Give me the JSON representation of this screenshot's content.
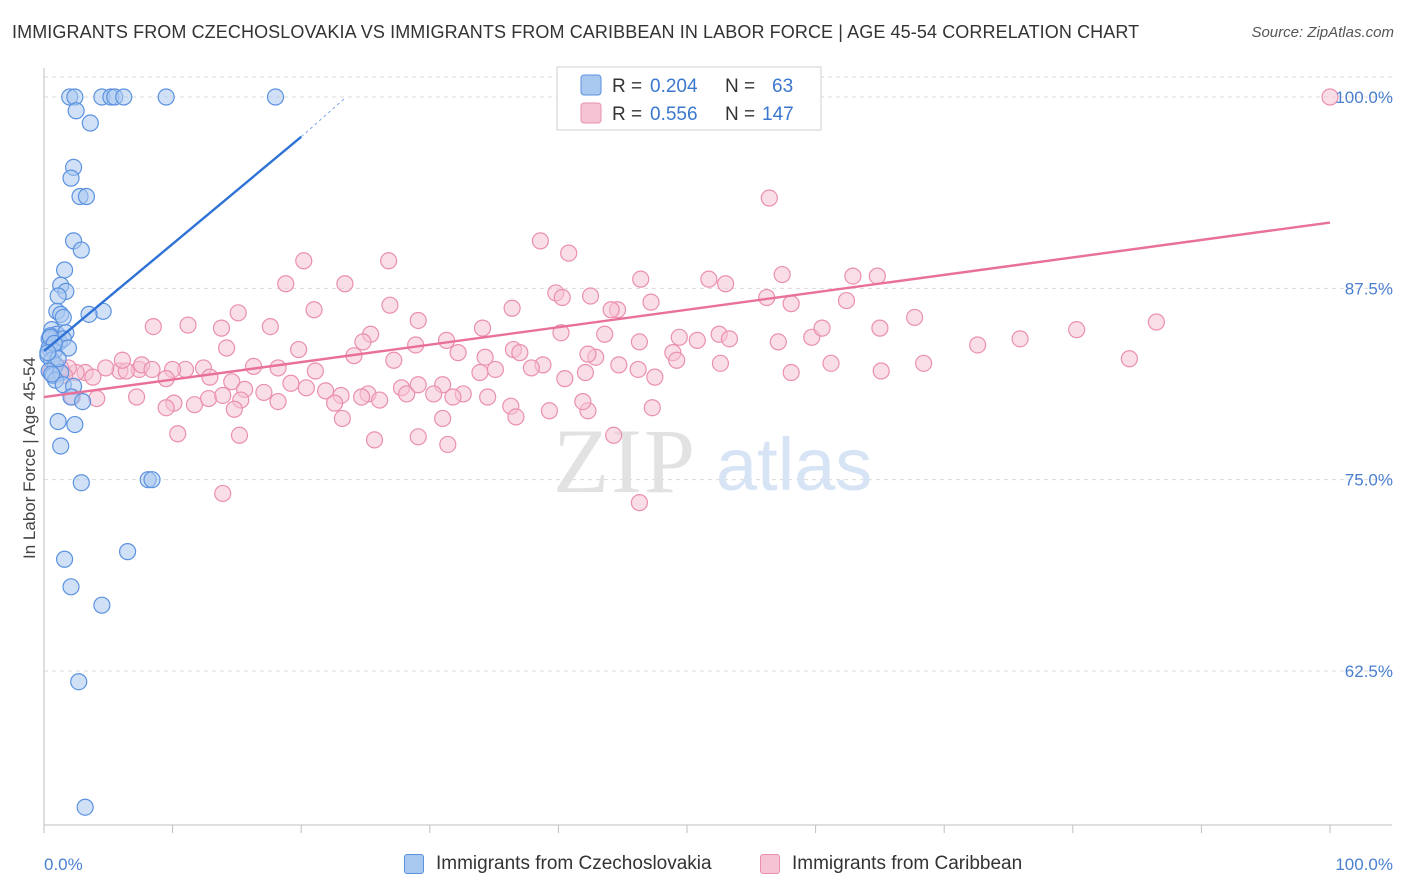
{
  "title": "IMMIGRANTS FROM CZECHOSLOVAKIA VS IMMIGRANTS FROM CARIBBEAN IN LABOR FORCE | AGE 45-54 CORRELATION CHART",
  "source": "Source: ZipAtlas.com",
  "watermark": {
    "zip": "ZIP",
    "atlas": "atlas"
  },
  "colors": {
    "blue_fill": "#a9c8f0",
    "blue_stroke": "#5b92e0",
    "blue_line": "#2f72d6",
    "pink_fill": "#f6c3d4",
    "pink_stroke": "#ea8fb0",
    "pink_line": "#e8709a",
    "grid": "#d9d9d9",
    "tick_label": "#4a7fd0"
  },
  "legend": {
    "rows": [
      {
        "r_label": "R =",
        "r_value": "0.204",
        "n_label": "N =",
        "n_value": "63",
        "color": "blue"
      },
      {
        "r_label": "R =",
        "r_value": "0.556",
        "n_label": "N =",
        "n_value": "147",
        "color": "pink"
      }
    ]
  },
  "bottom_legend": [
    {
      "label": "Immigrants from Czechoslovakia",
      "color": "blue"
    },
    {
      "label": "Immigrants from Caribbean",
      "color": "pink"
    }
  ],
  "chart_data": {
    "type": "scatter",
    "title": "IMMIGRANTS FROM CZECHOSLOVAKIA VS IMMIGRANTS FROM CARIBBEAN IN LABOR FORCE | AGE 45-54 CORRELATION CHART",
    "xlabel": "",
    "ylabel": "In Labor Force | Age 45-54",
    "xlim": [
      0,
      100
    ],
    "ylim": [
      50,
      102
    ],
    "x_tick_labels": [
      {
        "value": 0,
        "label": "0.0%"
      },
      {
        "value": 100,
        "label": "100.0%"
      }
    ],
    "y_tick_labels": [
      {
        "value": 100,
        "label": "100.0%"
      },
      {
        "value": 87.5,
        "label": "87.5%"
      },
      {
        "value": 75,
        "label": "75.0%"
      },
      {
        "value": 62.5,
        "label": "62.5%"
      }
    ],
    "grid": true,
    "legend_position": "top-center",
    "series": [
      {
        "name": "Immigrants from Czechoslovakia",
        "color": "blue",
        "r": 0.204,
        "n": 63,
        "trend": {
          "x0": 0,
          "y0": 83.4,
          "x1": 20,
          "y1": 97.4,
          "dash_to_x": 23.5,
          "dash_to_y": 100.0
        },
        "points": [
          [
            2.0,
            100
          ],
          [
            2.4,
            100
          ],
          [
            4.5,
            100
          ],
          [
            5.2,
            100
          ],
          [
            5.5,
            100
          ],
          [
            9.5,
            100
          ],
          [
            18.0,
            100
          ],
          [
            6.2,
            100
          ],
          [
            2.5,
            99.1
          ],
          [
            3.6,
            98.3
          ],
          [
            2.3,
            95.4
          ],
          [
            2.1,
            94.7
          ],
          [
            2.8,
            93.5
          ],
          [
            3.3,
            93.5
          ],
          [
            2.3,
            90.6
          ],
          [
            2.9,
            90.0
          ],
          [
            1.6,
            88.7
          ],
          [
            1.3,
            87.7
          ],
          [
            1.7,
            87.3
          ],
          [
            1.1,
            87.0
          ],
          [
            1.0,
            86.0
          ],
          [
            1.3,
            85.8
          ],
          [
            1.5,
            85.6
          ],
          [
            4.6,
            86.0
          ],
          [
            3.5,
            85.8
          ],
          [
            0.6,
            84.8
          ],
          [
            1.0,
            84.5
          ],
          [
            0.4,
            84.2
          ],
          [
            0.5,
            84.4
          ],
          [
            1.2,
            84.0
          ],
          [
            1.7,
            84.6
          ],
          [
            1.5,
            84.2
          ],
          [
            0.4,
            83.6
          ],
          [
            0.8,
            83.4
          ],
          [
            1.9,
            83.6
          ],
          [
            0.3,
            83.1
          ],
          [
            0.6,
            82.8
          ],
          [
            0.9,
            82.5
          ],
          [
            0.4,
            82.1
          ],
          [
            0.7,
            81.8
          ],
          [
            1.3,
            82.0
          ],
          [
            0.9,
            81.5
          ],
          [
            1.5,
            81.2
          ],
          [
            2.3,
            81.1
          ],
          [
            2.1,
            80.4
          ],
          [
            3.0,
            80.1
          ],
          [
            1.1,
            78.8
          ],
          [
            2.4,
            78.6
          ],
          [
            1.3,
            77.2
          ],
          [
            2.9,
            74.8
          ],
          [
            8.1,
            75.0
          ],
          [
            8.4,
            75.0
          ],
          [
            1.6,
            69.8
          ],
          [
            2.1,
            68.0
          ],
          [
            6.5,
            70.3
          ],
          [
            4.5,
            66.8
          ],
          [
            2.7,
            61.8
          ],
          [
            3.2,
            53.6
          ],
          [
            0.5,
            84.3
          ],
          [
            0.8,
            83.9
          ],
          [
            1.1,
            82.9
          ],
          [
            0.3,
            83.3
          ],
          [
            0.6,
            81.9
          ]
        ]
      },
      {
        "name": "Immigrants from Caribbean",
        "color": "pink",
        "r": 0.556,
        "n": 147,
        "trend": {
          "x0": 0,
          "y0": 80.4,
          "x1": 100,
          "y1": 91.8
        },
        "points": [
          [
            100,
            100
          ],
          [
            56.4,
            93.4
          ],
          [
            38.6,
            90.6
          ],
          [
            40.8,
            89.8
          ],
          [
            20.2,
            89.3
          ],
          [
            26.8,
            89.3
          ],
          [
            57.4,
            88.4
          ],
          [
            62.9,
            88.3
          ],
          [
            64.8,
            88.3
          ],
          [
            46.4,
            88.1
          ],
          [
            51.7,
            88.1
          ],
          [
            53.0,
            87.8
          ],
          [
            18.8,
            87.8
          ],
          [
            23.4,
            87.8
          ],
          [
            39.8,
            87.2
          ],
          [
            40.3,
            86.9
          ],
          [
            42.5,
            87.0
          ],
          [
            56.2,
            86.9
          ],
          [
            47.2,
            86.6
          ],
          [
            62.4,
            86.7
          ],
          [
            58.1,
            86.5
          ],
          [
            36.4,
            86.2
          ],
          [
            44.6,
            86.1
          ],
          [
            44.1,
            86.1
          ],
          [
            26.9,
            86.4
          ],
          [
            21.0,
            86.1
          ],
          [
            15.1,
            85.9
          ],
          [
            11.2,
            85.1
          ],
          [
            17.6,
            85.0
          ],
          [
            29.1,
            85.4
          ],
          [
            8.5,
            85.0
          ],
          [
            13.8,
            84.9
          ],
          [
            25.4,
            84.5
          ],
          [
            40.2,
            84.6
          ],
          [
            43.6,
            84.5
          ],
          [
            52.5,
            84.5
          ],
          [
            59.7,
            84.3
          ],
          [
            57.1,
            84.0
          ],
          [
            65.0,
            84.9
          ],
          [
            49.4,
            84.3
          ],
          [
            50.8,
            84.1
          ],
          [
            34.1,
            84.9
          ],
          [
            31.3,
            84.1
          ],
          [
            28.9,
            83.8
          ],
          [
            24.8,
            84.0
          ],
          [
            14.2,
            83.6
          ],
          [
            19.8,
            83.5
          ],
          [
            24.1,
            83.1
          ],
          [
            36.5,
            83.5
          ],
          [
            37.0,
            83.3
          ],
          [
            42.9,
            83.0
          ],
          [
            42.3,
            83.2
          ],
          [
            46.3,
            84.0
          ],
          [
            48.9,
            83.3
          ],
          [
            38.8,
            82.5
          ],
          [
            34.3,
            83.0
          ],
          [
            32.2,
            83.3
          ],
          [
            27.2,
            82.8
          ],
          [
            21.1,
            82.1
          ],
          [
            18.2,
            82.3
          ],
          [
            16.3,
            82.4
          ],
          [
            12.4,
            82.3
          ],
          [
            11.0,
            82.2
          ],
          [
            10.0,
            82.2
          ],
          [
            7.4,
            82.2
          ],
          [
            5.9,
            82.1
          ],
          [
            6.4,
            82.1
          ],
          [
            4.8,
            82.3
          ],
          [
            3.2,
            82.0
          ],
          [
            2.5,
            82.0
          ],
          [
            1.9,
            82.3
          ],
          [
            1.3,
            82.3
          ],
          [
            0.8,
            82.5
          ],
          [
            0.5,
            82.0
          ],
          [
            1.6,
            81.8
          ],
          [
            3.8,
            81.7
          ],
          [
            6.1,
            82.8
          ],
          [
            7.6,
            82.5
          ],
          [
            8.4,
            82.2
          ],
          [
            9.5,
            81.6
          ],
          [
            12.9,
            81.7
          ],
          [
            14.6,
            81.4
          ],
          [
            15.6,
            80.9
          ],
          [
            17.1,
            80.7
          ],
          [
            19.2,
            81.3
          ],
          [
            20.4,
            81.0
          ],
          [
            21.9,
            80.8
          ],
          [
            23.1,
            80.5
          ],
          [
            25.2,
            80.6
          ],
          [
            26.1,
            80.2
          ],
          [
            27.8,
            81.0
          ],
          [
            28.2,
            80.6
          ],
          [
            29.1,
            81.2
          ],
          [
            31.0,
            81.2
          ],
          [
            32.6,
            80.6
          ],
          [
            33.9,
            82.0
          ],
          [
            35.1,
            82.2
          ],
          [
            37.9,
            82.3
          ],
          [
            40.5,
            81.6
          ],
          [
            42.1,
            82.0
          ],
          [
            44.7,
            82.5
          ],
          [
            46.2,
            82.2
          ],
          [
            47.5,
            81.7
          ],
          [
            49.2,
            82.8
          ],
          [
            52.6,
            82.6
          ],
          [
            58.1,
            82.0
          ],
          [
            61.2,
            82.6
          ],
          [
            65.1,
            82.1
          ],
          [
            68.4,
            82.6
          ],
          [
            72.6,
            83.8
          ],
          [
            75.9,
            84.2
          ],
          [
            80.3,
            84.8
          ],
          [
            86.5,
            85.3
          ],
          [
            84.4,
            82.9
          ],
          [
            2.2,
            80.4
          ],
          [
            4.1,
            80.3
          ],
          [
            7.2,
            80.4
          ],
          [
            10.1,
            80.0
          ],
          [
            11.7,
            79.9
          ],
          [
            12.8,
            80.3
          ],
          [
            13.9,
            80.5
          ],
          [
            15.3,
            80.2
          ],
          [
            18.2,
            80.1
          ],
          [
            22.6,
            80.0
          ],
          [
            24.7,
            80.4
          ],
          [
            30.3,
            80.6
          ],
          [
            31.8,
            80.4
          ],
          [
            34.5,
            80.4
          ],
          [
            36.3,
            79.8
          ],
          [
            39.3,
            79.5
          ],
          [
            42.3,
            79.5
          ],
          [
            47.3,
            79.7
          ],
          [
            9.5,
            79.7
          ],
          [
            14.8,
            79.6
          ],
          [
            23.2,
            79.0
          ],
          [
            31.0,
            79.0
          ],
          [
            36.7,
            79.1
          ],
          [
            41.9,
            80.1
          ],
          [
            10.4,
            78.0
          ],
          [
            15.2,
            77.9
          ],
          [
            25.7,
            77.6
          ],
          [
            29.1,
            77.8
          ],
          [
            31.4,
            77.3
          ],
          [
            44.3,
            77.9
          ],
          [
            13.9,
            74.1
          ],
          [
            46.3,
            73.5
          ],
          [
            53.3,
            84.2
          ],
          [
            60.5,
            84.9
          ],
          [
            67.7,
            85.6
          ]
        ]
      }
    ]
  }
}
